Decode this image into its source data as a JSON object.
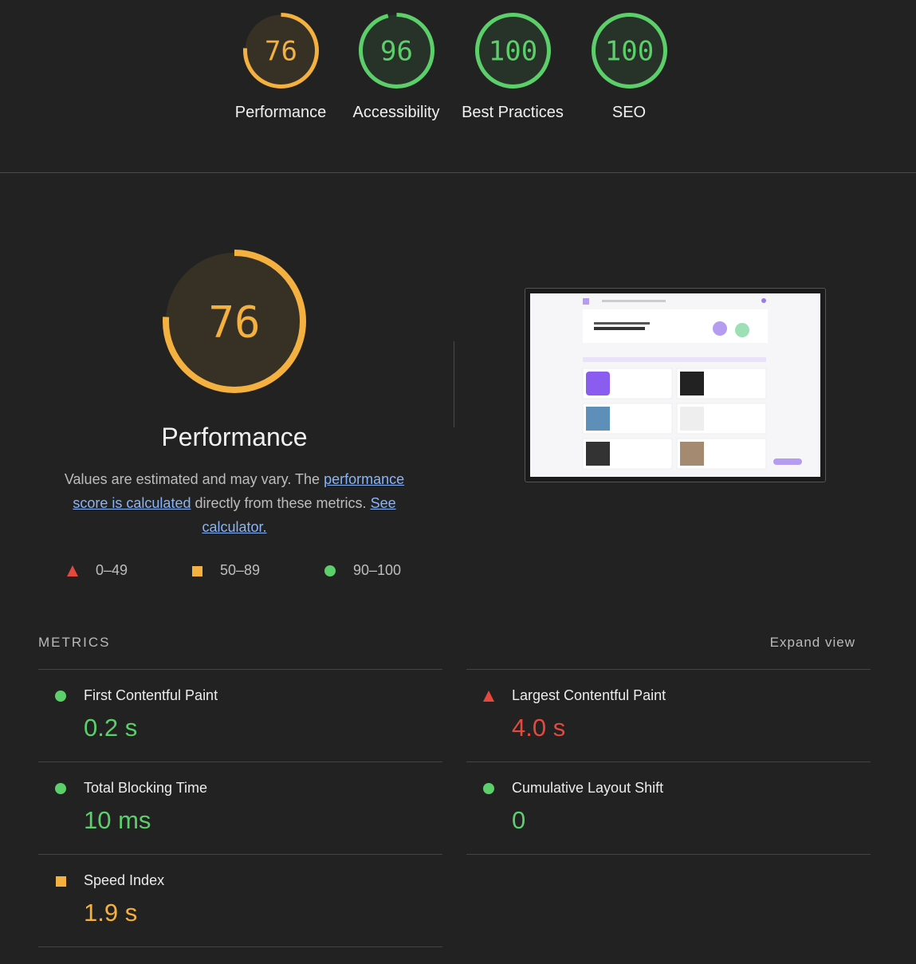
{
  "colors": {
    "pass": "#5ccf6b",
    "average": "#f4b13f",
    "fail": "#e5483c"
  },
  "gauges": [
    {
      "score": 76,
      "label": "Performance",
      "rating": "average"
    },
    {
      "score": 96,
      "label": "Accessibility",
      "rating": "pass"
    },
    {
      "score": 100,
      "label": "Best Practices",
      "rating": "pass"
    },
    {
      "score": 100,
      "label": "SEO",
      "rating": "pass"
    }
  ],
  "description": {
    "intro": "Values are estimated and may vary. The",
    "link1": "performance score is calculated",
    "middle": "directly from these metrics.",
    "link2": "See calculator."
  },
  "legend": [
    {
      "range": "0–49",
      "rating": "fail"
    },
    {
      "range": "50–89",
      "rating": "average"
    },
    {
      "range": "90–100",
      "rating": "pass"
    }
  ],
  "metrics": {
    "title": "METRICS",
    "expand": "Expand view",
    "items": [
      {
        "name": "First Contentful Paint",
        "value": "0.2 s",
        "rating": "pass"
      },
      {
        "name": "Largest Contentful Paint",
        "value": "4.0 s",
        "rating": "fail"
      },
      {
        "name": "Total Blocking Time",
        "value": "10 ms",
        "rating": "pass"
      },
      {
        "name": "Cumulative Layout Shift",
        "value": "0",
        "rating": "pass"
      },
      {
        "name": "Speed Index",
        "value": "1.9 s",
        "rating": "average"
      }
    ]
  }
}
